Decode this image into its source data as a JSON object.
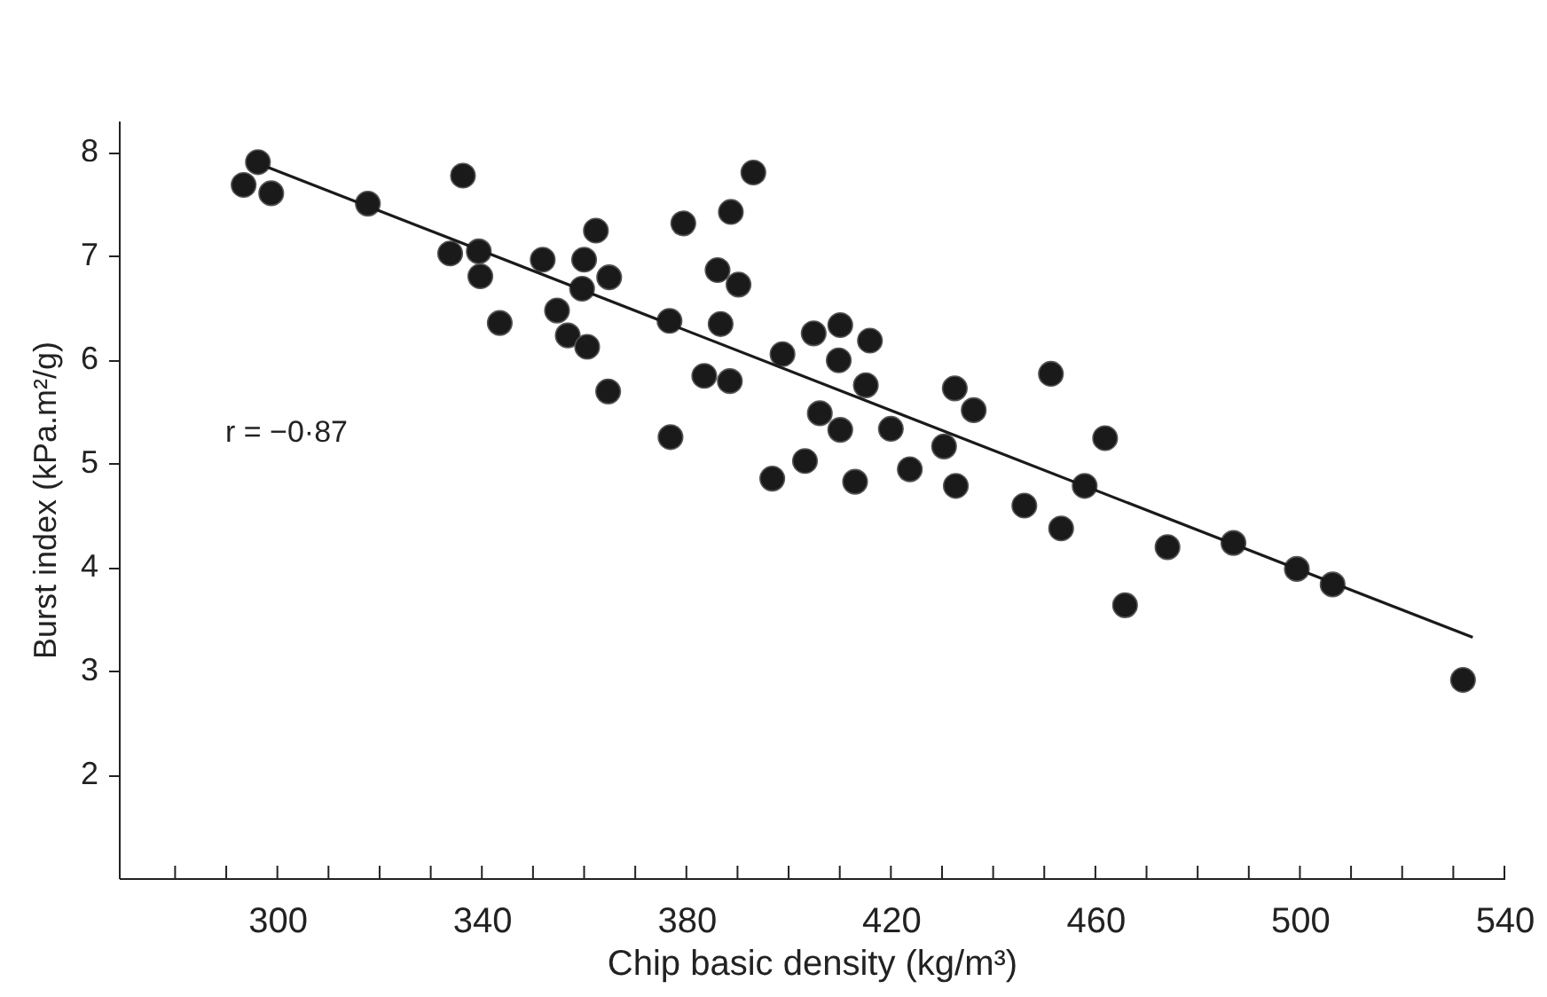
{
  "chart_data": {
    "type": "scatter",
    "xlabel": "Chip basic density (kg/m³)",
    "ylabel": "Burst index (kPa.m²/g)",
    "annotations": [
      "r = −0·87"
    ],
    "xlim": [
      269,
      540
    ],
    "ylim": [
      1,
      8.3
    ],
    "xticks": [
      {
        "value": 280,
        "label": null
      },
      {
        "value": 290,
        "label": null
      },
      300,
      {
        "value": 310,
        "label": null
      },
      {
        "value": 320,
        "label": null
      },
      {
        "value": 330,
        "label": null
      },
      340,
      {
        "value": 350,
        "label": null
      },
      {
        "value": 360,
        "label": null
      },
      {
        "value": 370,
        "label": null
      },
      380,
      {
        "value": 390,
        "label": null
      },
      {
        "value": 400,
        "label": null
      },
      {
        "value": 410,
        "label": null
      },
      420,
      {
        "value": 430,
        "label": null
      },
      {
        "value": 440,
        "label": null
      },
      {
        "value": 450,
        "label": null
      },
      460,
      {
        "value": 470,
        "label": null
      },
      {
        "value": 480,
        "label": null
      },
      {
        "value": 490,
        "label": null
      },
      500,
      {
        "value": 510,
        "label": null
      },
      {
        "value": 520,
        "label": null
      },
      {
        "value": 530,
        "label": null
      },
      540
    ],
    "yticks": [
      2,
      3,
      4,
      5,
      6,
      7,
      8
    ],
    "series": [
      {
        "marker": "circle",
        "color": "#1a1a1a",
        "x": [
          293.4,
          296.2,
          298.8,
          317.7,
          336.3,
          333.8,
          339.4,
          339.7,
          343.5,
          351.9,
          354.7,
          356.8,
          360.0,
          362.3,
          359.6,
          360.6,
          364.9,
          364.7,
          376.7,
          376.9,
          379.4,
          383.5,
          386.1,
          386.7,
          388.5,
          388.7,
          390.2,
          393.1,
          396.8,
          398.8,
          403.2,
          404.9,
          406.1,
          409.8,
          410.1,
          410.1,
          413.0,
          415.1,
          415.9,
          420.0,
          423.7,
          430.4,
          432.7,
          432.5,
          436.2,
          446.1,
          451.3,
          453.3,
          457.9,
          461.9,
          465.8,
          474.1,
          487.0,
          499.4,
          506.4,
          531.9
        ],
        "values": [
          7.68,
          7.9,
          7.6,
          7.5,
          7.77,
          7.02,
          7.04,
          6.8,
          6.35,
          6.96,
          6.47,
          6.23,
          6.96,
          7.24,
          6.68,
          6.12,
          6.79,
          5.69,
          6.37,
          5.25,
          7.31,
          5.84,
          6.86,
          6.34,
          5.79,
          7.42,
          6.72,
          7.8,
          4.85,
          6.05,
          5.02,
          6.25,
          5.48,
          5.99,
          6.33,
          5.32,
          4.82,
          5.75,
          6.18,
          5.33,
          4.94,
          5.16,
          4.78,
          5.72,
          5.51,
          4.59,
          5.86,
          4.37,
          4.78,
          5.24,
          3.63,
          4.19,
          4.23,
          3.98,
          3.83,
          2.91
        ]
      },
      {
        "type": "line",
        "color": "#1a1a1a",
        "x": [
          297.1,
          533.8
        ],
        "values": [
          7.87,
          3.32
        ]
      }
    ]
  }
}
